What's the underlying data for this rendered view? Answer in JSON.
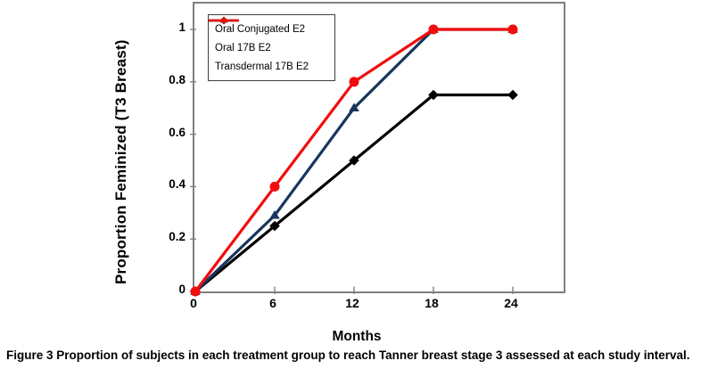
{
  "caption": {
    "label": "Figure 3",
    "text": "Proportion of subjects in each treatment group to reach Tanner breast stage 3 assessed at each study interval."
  },
  "chart_data": {
    "type": "line",
    "title": "",
    "xlabel": "Months",
    "ylabel": "Proportion Feminized (T3 Breast)",
    "x": [
      0,
      6,
      12,
      18,
      24
    ],
    "x_ticks": [
      0,
      6,
      12,
      18,
      24
    ],
    "y_ticks": [
      0,
      0.2,
      0.4,
      0.6,
      0.8,
      1
    ],
    "xlim": [
      0,
      27.9
    ],
    "ylim": [
      0,
      1.1
    ],
    "grid": false,
    "legend_position": "top-left-inside",
    "axis_color": "#7f7f7f",
    "series": [
      {
        "name": "Oral Conjugated E2",
        "marker": "diamond",
        "color": "#000000",
        "values": [
          0,
          0.25,
          0.5,
          0.75,
          0.75
        ]
      },
      {
        "name": "Oral 17B E2",
        "marker": "triangle",
        "color": "#17365d",
        "values": [
          0,
          0.29,
          0.7,
          1,
          1
        ]
      },
      {
        "name": "Transdermal 17B E2",
        "marker": "circle",
        "color": "#f20d0d",
        "values": [
          0,
          0.4,
          0.8,
          1,
          1
        ]
      }
    ]
  }
}
